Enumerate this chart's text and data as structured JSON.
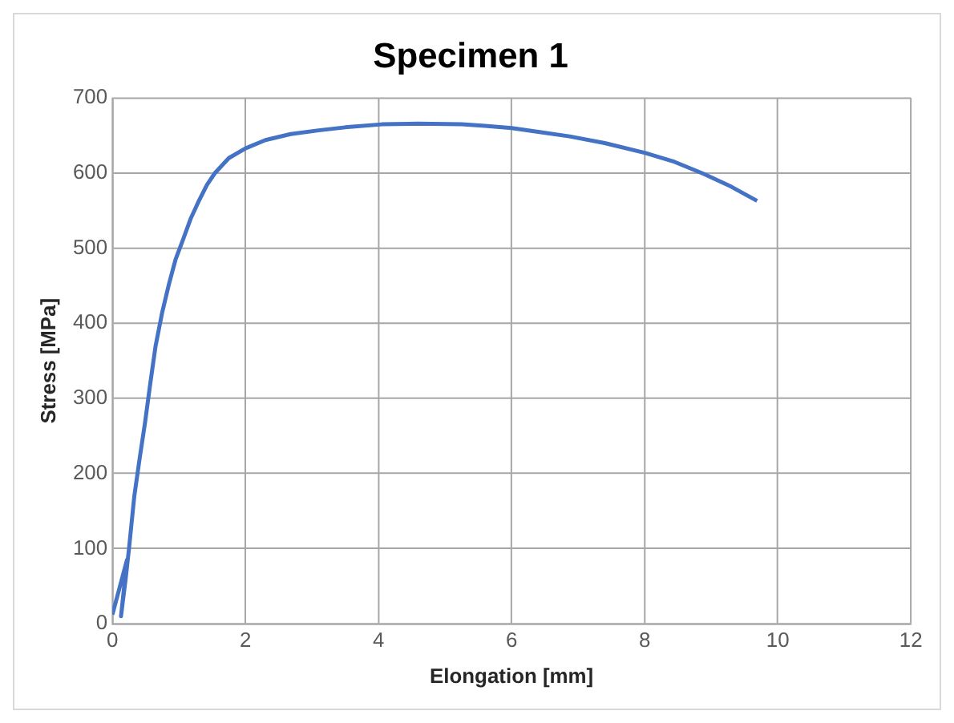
{
  "chart_data": {
    "type": "line",
    "title": "Specimen 1",
    "xlabel": "Elongation [mm]",
    "ylabel": "Stress [MPa]",
    "xlim": [
      0,
      12
    ],
    "xticks": [
      0,
      2,
      4,
      6,
      8,
      10,
      12
    ],
    "ylim": [
      0,
      700
    ],
    "yticks": [
      0,
      100,
      200,
      300,
      400,
      500,
      600,
      700
    ],
    "grid": true,
    "legend": false,
    "marker": "none",
    "line_style": "solid",
    "series": [
      {
        "color": "#4472c4",
        "x": [
          0,
          0.1,
          0.22,
          0.13,
          0.2,
          0.25,
          0.33,
          0.41,
          0.49,
          0.57,
          0.65,
          0.75,
          0.85,
          0.95,
          1.06,
          1.18,
          1.3,
          1.42,
          1.54,
          1.75,
          2,
          2.3,
          2.68,
          3.1,
          3.5,
          4.05,
          4.6,
          5.25,
          5.6,
          6,
          6.4,
          6.87,
          7.4,
          8,
          8.45,
          8.89,
          9.3,
          9.69
        ],
        "values": [
          12,
          45,
          85,
          10,
          60,
          100,
          170,
          220,
          267,
          320,
          370,
          415,
          452,
          485,
          511,
          540,
          563,
          584,
          600,
          620,
          633,
          644,
          652,
          657,
          661,
          665,
          666,
          665,
          663,
          660,
          655,
          649,
          640,
          627,
          615,
          599,
          582,
          563
        ]
      }
    ]
  }
}
